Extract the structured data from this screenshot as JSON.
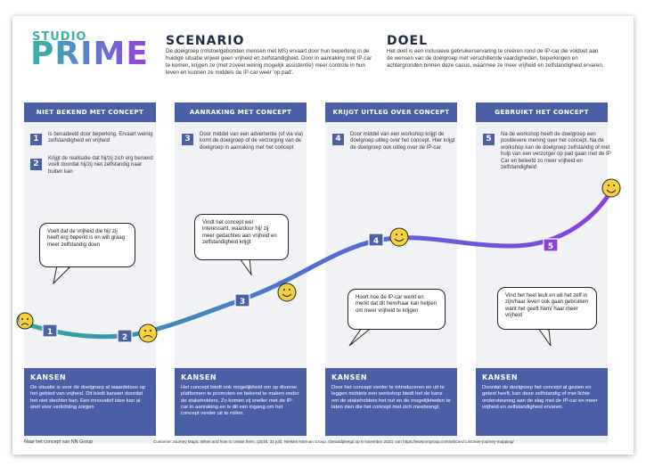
{
  "logo": {
    "top": "STUDIO",
    "bottom": "PRIME"
  },
  "scenario": {
    "title": "SCENARIO",
    "text": "De doelgroep (rolstoelgebonden mensen met MS) ervaart door hun beperking in de huidige situatie vrijwel geen vrijheid en zelfstandigheid. Door in aanraking met IP-car te komen, krijgen ze (met zoveel weinig mogelijk assistentie) meer controle in hun leven en kunnen ze middels de IP-car weer 'op pad'."
  },
  "doel": {
    "title": "DOEL",
    "text": "Het doel is een inclusieve gebruikerservaring te creëren rond de IP-car die voldoet aan de wensen van de doelgroep met verschillende vaardigheden, beperkingen en achtergronden binnen deze casus, waarmee ze meer vrijheid en zelfstandigheid ervaren."
  },
  "stages": [
    {
      "title": "NIET BEKEND MET CONCEPT"
    },
    {
      "title": "AANRAKING MET CONCEPT"
    },
    {
      "title": "KRIJGT UITLEG OVER CONCEPT"
    },
    {
      "title": "GEBRUIKT HET CONCEPT"
    }
  ],
  "steps": [
    {
      "num": "1",
      "text": "Is benadeeld door beperking. Ervaart weinig zelfstandigheid en vrijheid"
    },
    {
      "num": "2",
      "text": "Krijgt de realisatie dat hij/zij zich erg beroerd voelt doordat hij/zij niet zelfstandig naar buiten kan"
    },
    {
      "num": "3",
      "text": "Door middel van een advertentie (of via via) komt de doelgroep of de verzorging van de doelgroep in aanraking met het concept"
    },
    {
      "num": "4",
      "text": "Door middel van een workshop krijgt de doelgroep uitleg over het concept. Hier krijgt de doelgroep ook uitleg over de IP-car"
    },
    {
      "num": "5",
      "text": "Na de workshop heeft de doelgroep een positievere mening over het concept. Na de workshop kan de doelgroep zelfstandig of met hulp van een verzorger op pad gaan met de IP Car en beleefd zo meer vrijheid en zelfstandigheid"
    }
  ],
  "bubbles": [
    {
      "text": "Voelt dat de vrijheid die hij/ zij heeft erg beperkt is en wilt graag meer zelfstandig doen"
    },
    {
      "text": "Vindt het concept wel interessant, waardoor hij/ zij meer gedachtes aan vrijheid en zelfstandigheid krijgt"
    },
    {
      "text": "Hoort hoe de IP-car werkt en merkt dat dit hem/haar kan helpen om meer vrijheid te krijgen"
    },
    {
      "text": "Vind het heel leuk en wil het zelf in zijn/haar leven ook gaan gebruiken want het geeft hem/ haar meer vrijheid"
    }
  ],
  "kansen": [
    {
      "title": "KANSEN",
      "text": "De situatie is voor de doelgroep al waardeloos op het gebied van vrijheid. Dit biedt kansen doordat het niet slechter kan. Een innovatief idee kan al snel voor verlichting zorgen"
    },
    {
      "title": "KANSEN",
      "text": "Het concept biedt ook mogelijkheid om op diverse platformen te promoten en bekend te maken onder de stakeholders. Zo komen zij sneller met de IP-car in aanraking en is dit een ingang om het concept verder uit te rollen."
    },
    {
      "title": "KANSEN",
      "text": "Door het concept verder te introduceren en uit te leggen middels een workshop biedt het de kans om de stakeholders het nut en de mogelijkheden te laten zien die het concept met zich meebrengt."
    },
    {
      "title": "KANSEN",
      "text": "Doordat de doelgroep het concept al gezien en getest heeft, kan deze zelfstandig of met lichte ondersteuning aan de slag met de IP-car en meer vrijheid en zelfstandigheid ervaren."
    }
  ],
  "footer": {
    "left": "Naar het concept van NN Group",
    "right": "Customer Journey Maps: When and how to create them. (2016, 31 juli). Nielsen Norman Group. Geraadpleegd op 6 november 2023, van https://www.nngroup.com/articles/customer-journey-mapping/"
  },
  "colors": {
    "accent": "#4b5fa7",
    "teal": "#2fa7a0",
    "purple": "#8a3fe0",
    "emoji": "#f7d23c"
  },
  "icons": [
    "sad-face-icon",
    "sad-face-icon",
    "smiley-face-icon",
    "smiley-face-icon",
    "smiley-face-icon"
  ]
}
